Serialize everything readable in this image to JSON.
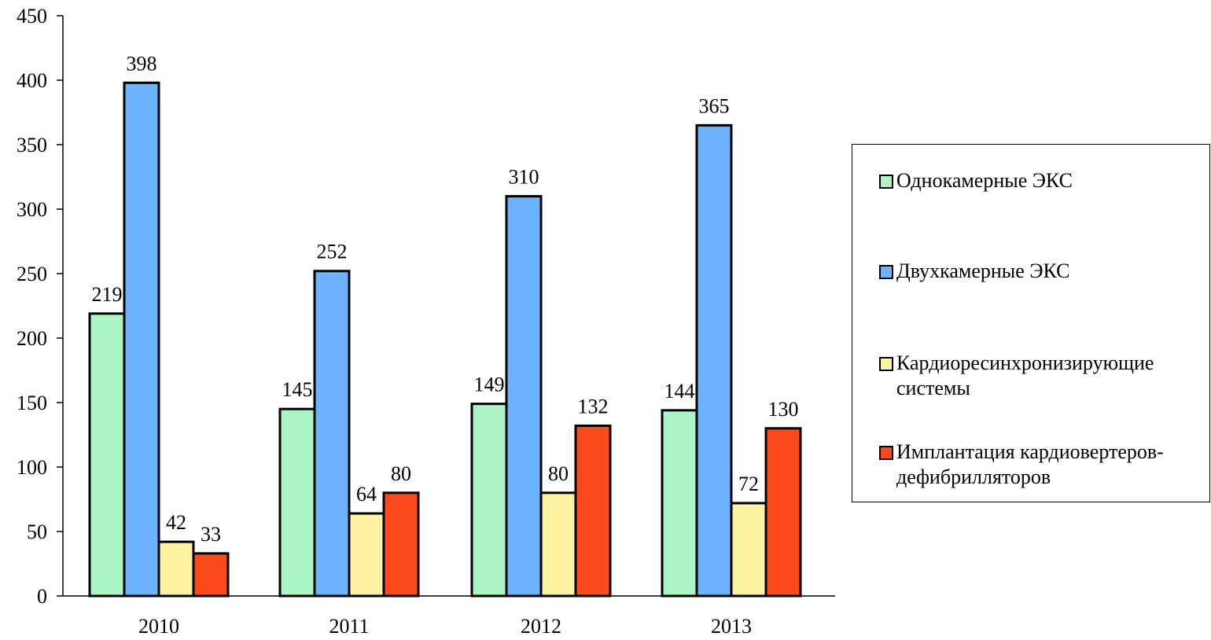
{
  "chart_data": {
    "type": "bar",
    "categories": [
      "2010",
      "2011",
      "2012",
      "2013"
    ],
    "series": [
      {
        "name": "Однокамерные ЭКС",
        "values": [
          219,
          145,
          149,
          144
        ],
        "color": "#aaf5c3"
      },
      {
        "name": "Двухкамерные ЭКС",
        "values": [
          398,
          252,
          310,
          365
        ],
        "color": "#6cb2fc"
      },
      {
        "name": "Кардиоресинхронизирующие системы",
        "values": [
          42,
          64,
          80,
          72
        ],
        "color": "#fdf3a0"
      },
      {
        "name": "Имплантация кардиовертеров-дефибрилляторов",
        "values": [
          33,
          80,
          132,
          130
        ],
        "color": "#fd4a1c"
      }
    ],
    "yticks": [
      0,
      50,
      100,
      150,
      200,
      250,
      300,
      350,
      400,
      450
    ],
    "ylim": [
      0,
      450
    ],
    "title": "",
    "xlabel": "",
    "ylabel": "",
    "grid": false,
    "legend_position": "right",
    "data_labels": true
  }
}
